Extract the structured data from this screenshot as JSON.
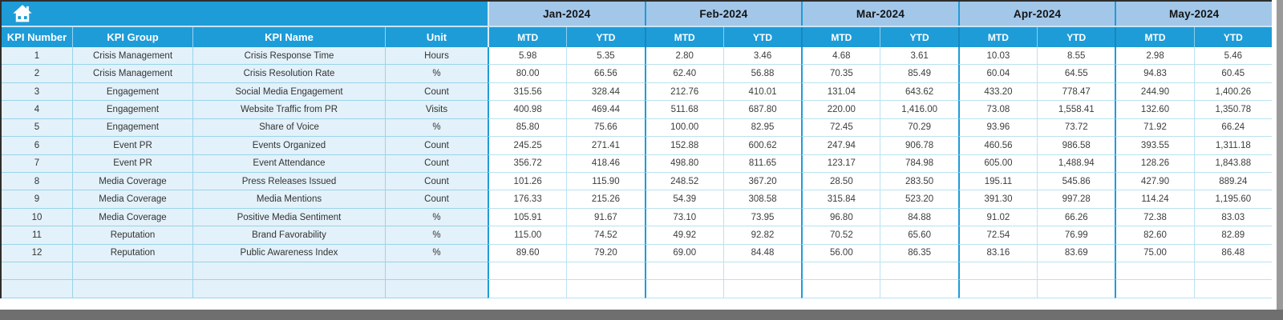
{
  "toolbar": {
    "home_icon": "home"
  },
  "table": {
    "left_headers": [
      "KPI Number",
      "KPI Group",
      "KPI Name",
      "Unit"
    ],
    "months": [
      "Jan-2024",
      "Feb-2024",
      "Mar-2024",
      "Apr-2024",
      "May-2024"
    ],
    "sub_headers": [
      "MTD",
      "YTD"
    ],
    "empty_row_count": 2,
    "rows": [
      {
        "num": "1",
        "group": "Crisis Management",
        "name": "Crisis Response Time",
        "unit": "Hours",
        "values": [
          "5.98",
          "5.35",
          "2.80",
          "3.46",
          "4.68",
          "3.61",
          "10.03",
          "8.55",
          "2.98",
          "5.46"
        ]
      },
      {
        "num": "2",
        "group": "Crisis Management",
        "name": "Crisis Resolution Rate",
        "unit": "%",
        "values": [
          "80.00",
          "66.56",
          "62.40",
          "56.88",
          "70.35",
          "85.49",
          "60.04",
          "64.55",
          "94.83",
          "60.45"
        ]
      },
      {
        "num": "3",
        "group": "Engagement",
        "name": "Social Media Engagement",
        "unit": "Count",
        "values": [
          "315.56",
          "328.44",
          "212.76",
          "410.01",
          "131.04",
          "643.62",
          "433.20",
          "778.47",
          "244.90",
          "1,400.26"
        ]
      },
      {
        "num": "4",
        "group": "Engagement",
        "name": "Website Traffic from PR",
        "unit": "Visits",
        "values": [
          "400.98",
          "469.44",
          "511.68",
          "687.80",
          "220.00",
          "1,416.00",
          "73.08",
          "1,558.41",
          "132.60",
          "1,350.78"
        ]
      },
      {
        "num": "5",
        "group": "Engagement",
        "name": "Share of Voice",
        "unit": "%",
        "values": [
          "85.80",
          "75.66",
          "100.00",
          "82.95",
          "72.45",
          "70.29",
          "93.96",
          "73.72",
          "71.92",
          "66.24"
        ]
      },
      {
        "num": "6",
        "group": "Event PR",
        "name": "Events Organized",
        "unit": "Count",
        "values": [
          "245.25",
          "271.41",
          "152.88",
          "600.62",
          "247.94",
          "906.78",
          "460.56",
          "986.58",
          "393.55",
          "1,311.18"
        ]
      },
      {
        "num": "7",
        "group": "Event PR",
        "name": "Event Attendance",
        "unit": "Count",
        "values": [
          "356.72",
          "418.46",
          "498.80",
          "811.65",
          "123.17",
          "784.98",
          "605.00",
          "1,488.94",
          "128.26",
          "1,843.88"
        ]
      },
      {
        "num": "8",
        "group": "Media Coverage",
        "name": "Press Releases Issued",
        "unit": "Count",
        "values": [
          "101.26",
          "115.90",
          "248.52",
          "367.20",
          "28.50",
          "283.50",
          "195.11",
          "545.86",
          "427.90",
          "889.24"
        ]
      },
      {
        "num": "9",
        "group": "Media Coverage",
        "name": "Media Mentions",
        "unit": "Count",
        "values": [
          "176.33",
          "215.26",
          "54.39",
          "308.58",
          "315.84",
          "523.20",
          "391.30",
          "997.28",
          "114.24",
          "1,195.60"
        ]
      },
      {
        "num": "10",
        "group": "Media Coverage",
        "name": "Positive Media Sentiment",
        "unit": "%",
        "values": [
          "105.91",
          "91.67",
          "73.10",
          "73.95",
          "96.80",
          "84.88",
          "91.02",
          "66.26",
          "72.38",
          "83.03"
        ]
      },
      {
        "num": "11",
        "group": "Reputation",
        "name": "Brand Favorability",
        "unit": "%",
        "values": [
          "115.00",
          "74.52",
          "49.92",
          "92.82",
          "70.52",
          "65.60",
          "72.54",
          "76.99",
          "82.60",
          "82.89"
        ]
      },
      {
        "num": "12",
        "group": "Reputation",
        "name": "Public Awareness Index",
        "unit": "%",
        "values": [
          "89.60",
          "79.20",
          "69.00",
          "84.48",
          "56.00",
          "86.35",
          "83.16",
          "83.69",
          "75.00",
          "86.48"
        ]
      }
    ]
  },
  "colors": {
    "header_blue": "#1e9cd8",
    "month_band_blue": "#a2c7e9",
    "row_tint": "#e3f1fa",
    "grid_cyan": "#9ad4e9",
    "window_edge_gray": "#6f6f6f"
  }
}
